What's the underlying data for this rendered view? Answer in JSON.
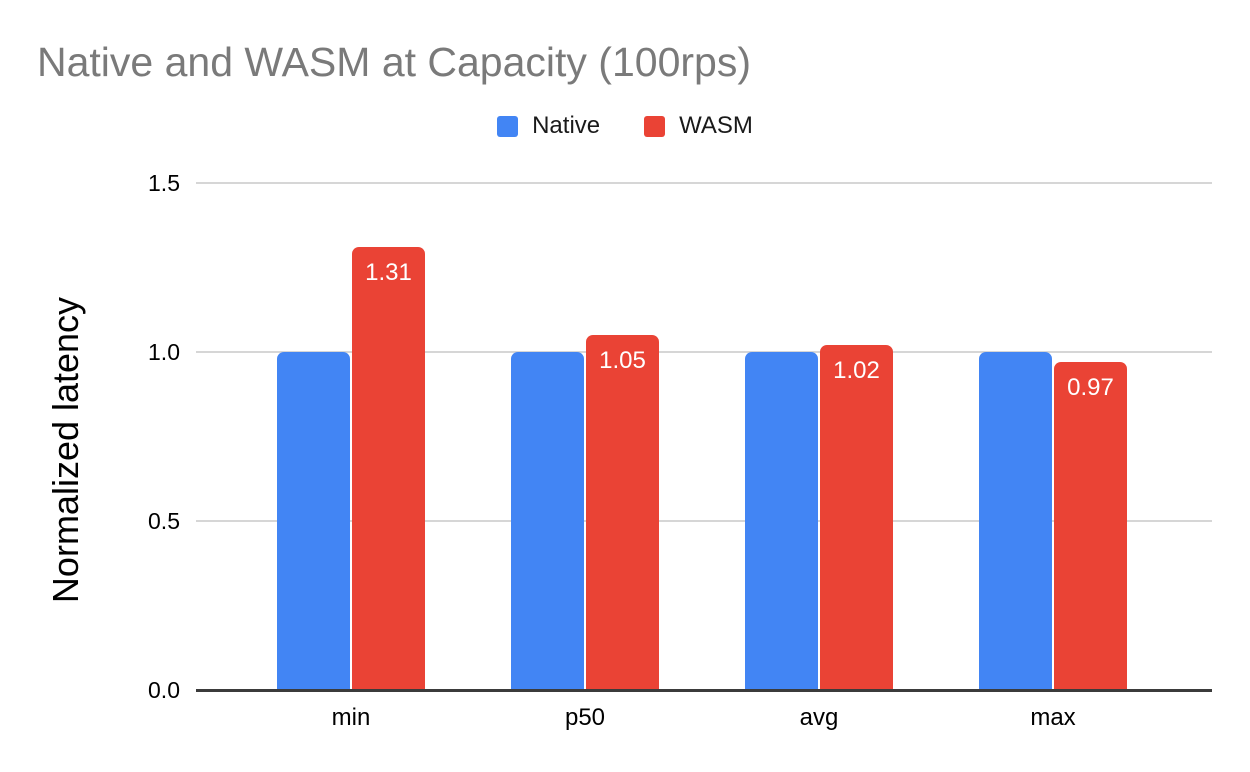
{
  "chart_data": {
    "type": "bar",
    "title": "Native and WASM at Capacity (100rps)",
    "ylabel": "Normalized latency",
    "xlabel": "",
    "categories": [
      "min",
      "p50",
      "avg",
      "max"
    ],
    "series": [
      {
        "name": "Native",
        "color": "#4285F4",
        "values": [
          1.0,
          1.0,
          1.0,
          1.0
        ],
        "data_labels": [
          "",
          "",
          "",
          ""
        ]
      },
      {
        "name": "WASM",
        "color": "#EA4335",
        "values": [
          1.31,
          1.05,
          1.02,
          0.97
        ],
        "data_labels": [
          "1.31",
          "1.05",
          "1.02",
          "0.97"
        ]
      }
    ],
    "ylim": [
      0,
      1.5
    ],
    "yticks": [
      {
        "value": 0.0,
        "label": "0.0"
      },
      {
        "value": 0.5,
        "label": "0.5"
      },
      {
        "value": 1.0,
        "label": "1.0"
      },
      {
        "value": 1.5,
        "label": "1.5"
      }
    ],
    "grid": "horizontal",
    "legend_position": "top-center",
    "colors": {
      "title_text": "#7a7a7a",
      "axis_text": "#000000",
      "data_label_text": "#ffffff",
      "gridline": "#d6d6d6",
      "axis_line": "#3b3b3b",
      "background": "#ffffff"
    }
  }
}
